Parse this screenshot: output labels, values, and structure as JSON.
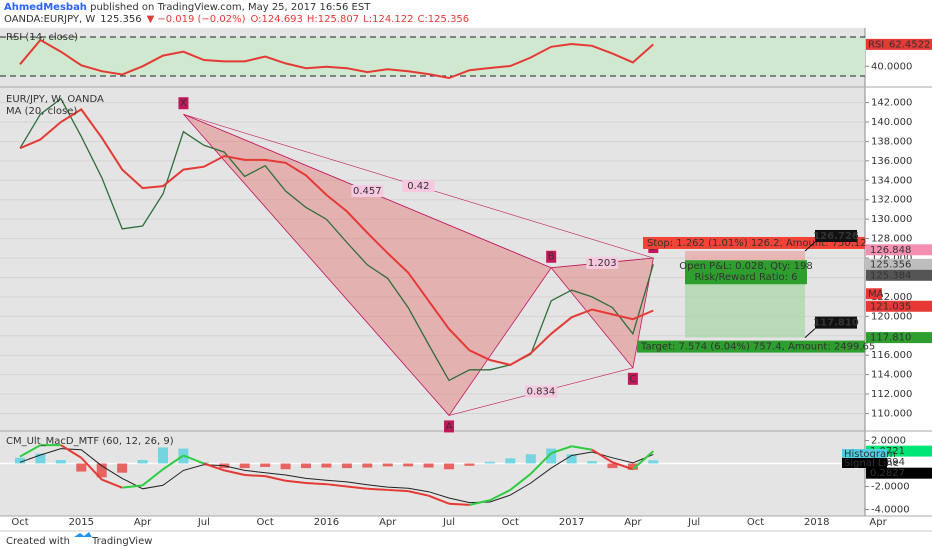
{
  "header": {
    "author": "AhmedMesbah",
    "published": " published on TradingView.com, May 25, 2017 16:56 EST",
    "symbol": "OANDA:EURJPY, W",
    "last": "125.356",
    "arrow": "▼",
    "change": "−0.019 (−0.02%)",
    "open": "O:124.693",
    "high": "H:125.807",
    "low": "L:124.122",
    "close": "C:125.356"
  },
  "chart_data": [
    {
      "type": "line",
      "title": "RSI (14, close)",
      "series": [
        {
          "name": "RSI",
          "color": "#e53935",
          "values": [
            42,
            67,
            55,
            41,
            35,
            31.6,
            40,
            51,
            55,
            46.4,
            45,
            45,
            50,
            43,
            38,
            39.5,
            38,
            34,
            37,
            35,
            32,
            28,
            36,
            38.2,
            40.3,
            49,
            60,
            62.8,
            61,
            53,
            44,
            62.4522,
            null,
            null,
            null,
            null,
            null,
            null,
            null,
            null,
            null,
            null,
            null
          ]
        }
      ],
      "ylim": [
        19.8,
        77.2
      ],
      "yticks": [
        {
          "value": 40,
          "label": "40.0000"
        }
      ],
      "bands": [
        30,
        70
      ],
      "band_color": "#cfe8cf",
      "marker": {
        "value": 62.4522,
        "label": "62.4522",
        "color": "#e53935"
      }
    },
    {
      "type": "line",
      "title": "EUR/JPY, W, OANDA",
      "categories": [
        "Oct",
        null,
        null,
        "2015",
        null,
        null,
        "Apr",
        null,
        null,
        "Jul",
        null,
        null,
        "Oct",
        null,
        null,
        "2016",
        null,
        null,
        "Apr",
        null,
        null,
        "Jul",
        null,
        null,
        "Oct",
        null,
        null,
        "2017",
        null,
        null,
        "Apr",
        null,
        null,
        "Jul",
        null,
        null,
        "Oct",
        null,
        null,
        "2018",
        null,
        null,
        "Apr"
      ],
      "series": [
        {
          "name": "EUR/JPY, W, OANDA",
          "color": "#2f6e3a",
          "values": [
            137.3,
            140.8,
            142.4,
            138.5,
            134.3,
            129.0,
            129.3,
            132.6,
            139.0,
            137.6,
            136.9,
            134.4,
            135.5,
            132.9,
            131.2,
            130.0,
            127.6,
            125.3,
            123.9,
            120.9,
            117.1,
            113.4,
            114.5,
            114.5,
            115.0,
            116.1,
            121.6,
            122.7,
            122.0,
            120.9,
            118.2,
            125.356,
            null,
            null,
            null,
            null,
            null,
            null,
            null,
            null,
            null,
            null,
            null
          ]
        },
        {
          "name": "MA (20, close)",
          "color": "#e53935",
          "values": [
            137.3,
            138.2,
            140.0,
            141.3,
            138.4,
            135.1,
            133.2,
            133.4,
            135.1,
            135.4,
            136.5,
            136.1,
            136.1,
            135.8,
            134.5,
            132.5,
            130.8,
            128.6,
            126.5,
            124.5,
            121.6,
            118.7,
            116.5,
            115.5,
            115.0,
            116.2,
            118.2,
            119.9,
            120.7,
            120.2,
            119.7,
            120.6,
            null,
            null,
            null,
            null,
            null,
            null,
            null,
            null,
            null,
            null,
            null
          ]
        }
      ],
      "ylim": [
        108.3,
        143.5
      ],
      "yticks": [
        {
          "value": 110,
          "label": "110.000"
        },
        {
          "value": 112,
          "label": "112.000"
        },
        {
          "value": 114,
          "label": "114.000"
        },
        {
          "value": 116,
          "label": "116.000"
        },
        {
          "value": 118,
          "label": "118.000"
        },
        {
          "value": 120,
          "label": "120.000"
        },
        {
          "value": 122,
          "label": "122.000"
        },
        {
          "value": 124,
          "label": "124.000"
        },
        {
          "value": 126,
          "label": "126.000"
        },
        {
          "value": 128,
          "label": "128.000"
        },
        {
          "value": 130,
          "label": "130.000"
        },
        {
          "value": 132,
          "label": "132.000"
        },
        {
          "value": 134,
          "label": "134.000"
        },
        {
          "value": 136,
          "label": "136.000"
        },
        {
          "value": 138,
          "label": "138.000"
        },
        {
          "value": 140,
          "label": "140.000"
        },
        {
          "value": 142,
          "label": "142.000"
        }
      ],
      "grid": true,
      "pattern": {
        "points": [
          {
            "label": "X",
            "index": 8,
            "value": 140.8
          },
          {
            "label": "A",
            "index": 21,
            "value": 109.8
          },
          {
            "label": "B",
            "index": 26,
            "value": 125.0
          },
          {
            "label": "C",
            "index": 30,
            "value": 114.7
          },
          {
            "label": "D",
            "index": 31,
            "value": 126.0
          }
        ],
        "ratios": [
          "0.457",
          "0.42",
          "0.834",
          "1.203"
        ],
        "fill": "#e57373",
        "color": "#c2185b"
      },
      "trade": {
        "stop": {
          "value": 126.726,
          "label": "126.726",
          "text": "Stop: 1.262 (1.01%) 126.2, Amount: 750.12"
        },
        "entry": 125.464,
        "target": {
          "value": 117.81,
          "label": "117.810",
          "text": "Target: 7.574 (6.04%) 757.4, Amount: 2499.65"
        },
        "pnl": "Open P&L: 0.028, Qty: 198",
        "ratio": "Risk/Reward Ratio: 6"
      },
      "markers": [
        {
          "value": 126.848,
          "label": "126.848",
          "color": "#f48fb1"
        },
        {
          "value": 125.356,
          "label": "125.356",
          "color": "#bdbdbd"
        },
        {
          "value": 125.384,
          "label": "125.384",
          "color": "#555555"
        },
        {
          "value": 121.035,
          "label": "121.035",
          "color": "#e53935"
        },
        {
          "value": 117.81,
          "label": "117.810",
          "color": "#2e9e2e"
        }
      ],
      "ma_tag": "MA"
    },
    {
      "type": "macd",
      "title": "CM_Ult_MacD_MTF (60, 12, 26, 9)",
      "series": [
        {
          "name": "Histogram",
          "color": "#4dd0e1",
          "neg_color": "#e53935",
          "values": [
            0.5,
            0.86,
            0.3,
            -0.7,
            -1.2,
            -0.8,
            0.3,
            1.4,
            1.3,
            0.1,
            -0.4,
            -0.4,
            -0.3,
            -0.5,
            -0.4,
            -0.35,
            -0.4,
            -0.35,
            -0.25,
            -0.25,
            -0.35,
            -0.5,
            -0.2,
            0.15,
            0.45,
            0.8,
            1.3,
            0.8,
            0.2,
            -0.4,
            -0.55,
            0.2827,
            null,
            null,
            null,
            null,
            null,
            null,
            null,
            null,
            null,
            null,
            null
          ]
        },
        {
          "color": "#2ecc40",
          "neg_color": "#e53935",
          "values": [
            0.6,
            1.6,
            1.6,
            0.5,
            -1.4,
            -2.1,
            -1.9,
            -0.5,
            0.7,
            0,
            -0.6,
            -1.0,
            -1.1,
            -1.5,
            -1.7,
            -1.8,
            -2.0,
            -2.2,
            -2.3,
            -2.4,
            -2.8,
            -3.5,
            -3.6,
            -3.2,
            -2.3,
            -0.9,
            0.9,
            1.5,
            1.2,
            0.1,
            -0.5,
            1.0721,
            null,
            null,
            null,
            null,
            null,
            null,
            null,
            null,
            null,
            null,
            null
          ]
        },
        {
          "name": "Signal Line",
          "color": "#222222",
          "values": [
            0.1,
            0.74,
            1.3,
            1.2,
            -0.2,
            -1.3,
            -2.2,
            -1.9,
            -0.6,
            -0.1,
            -0.2,
            -0.6,
            -0.8,
            -1.0,
            -1.3,
            -1.45,
            -1.6,
            -1.85,
            -2.05,
            -2.15,
            -2.45,
            -3.0,
            -3.4,
            -3.35,
            -2.75,
            -1.7,
            -0.4,
            0.7,
            1.0,
            0.5,
            0.05,
            0.7894,
            null,
            null,
            null,
            null,
            null,
            null,
            null,
            null,
            null,
            null,
            null
          ]
        }
      ],
      "ylim": [
        -4.48,
        2.74
      ],
      "yticks": [
        {
          "value": 2,
          "label": "2.0000"
        },
        {
          "value": -2,
          "label": "-2.0000"
        },
        {
          "value": -4,
          "label": "-4.0000"
        }
      ],
      "markers": [
        {
          "value": 1.0721,
          "label": "1.0721",
          "color": "#00e676"
        },
        {
          "value": 0.7894,
          "label": "0.7894",
          "color": "#ffffff"
        },
        {
          "value": 0.2827,
          "label": "0.2827",
          "color": "#000000"
        }
      ]
    }
  ],
  "footer": {
    "created": "Created with",
    "brand": "TradingView"
  }
}
